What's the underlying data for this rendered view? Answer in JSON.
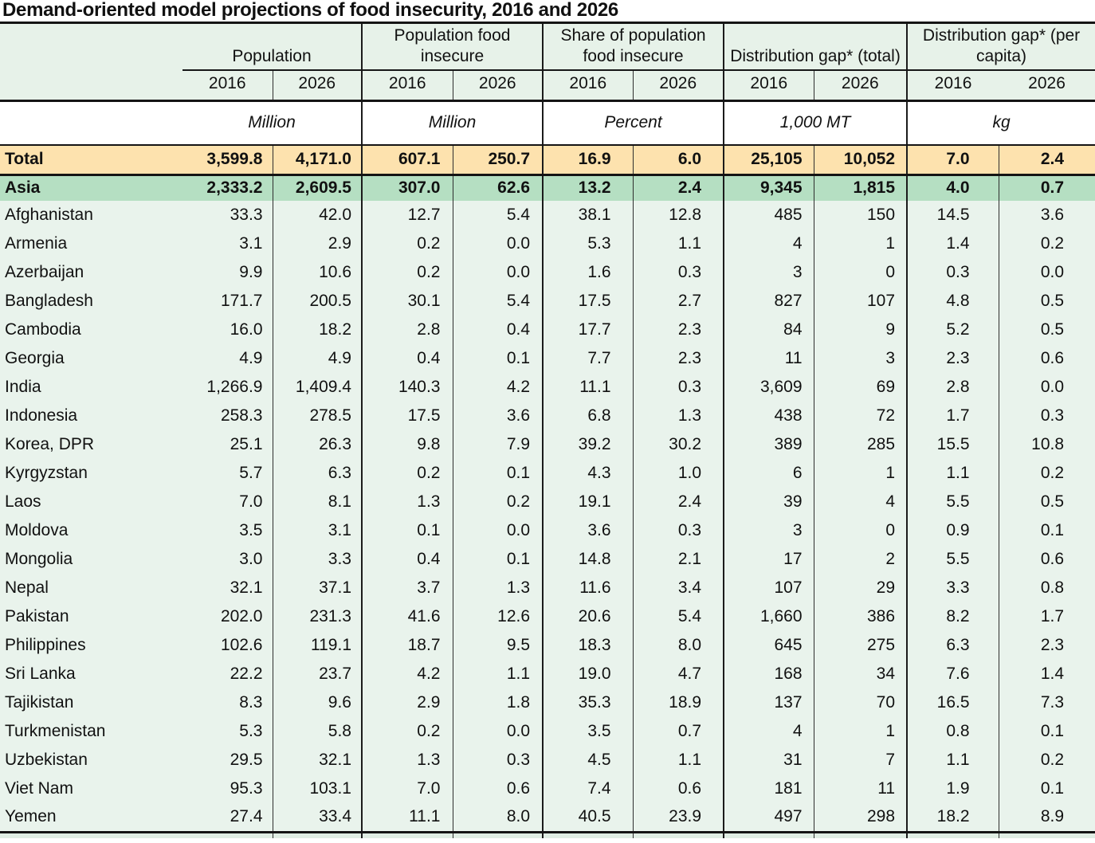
{
  "title": "Demand-oriented model projections of food insecurity, 2016 and 2026",
  "colors": {
    "header_green": "#e7f2e9",
    "country_row_green": "#e9f3ec",
    "asia_row_green": "#b5dfc2",
    "total_row_orange": "#fde2ae",
    "rule_dark": "#141414",
    "rule_thin": "#2e2e2e",
    "partial_bottom_row": "#dfede3"
  },
  "table": {
    "years": [
      "2016",
      "2026"
    ],
    "groups": [
      {
        "label": "Population",
        "unit": "Million"
      },
      {
        "label": "Population food insecure",
        "unit": "Million"
      },
      {
        "label": "Share of population food insecure",
        "unit": "Percent"
      },
      {
        "label": "Distribution gap* (total)",
        "unit": "1,000 MT"
      },
      {
        "label": "Distribution gap* (per capita)",
        "unit": "kg"
      }
    ],
    "rows": [
      {
        "name": "Total",
        "type": "total",
        "values": [
          "3,599.8",
          "4,171.0",
          "607.1",
          "250.7",
          "16.9",
          "6.0",
          "25,105",
          "10,052",
          "7.0",
          "2.4"
        ]
      },
      {
        "name": "Asia",
        "type": "region",
        "values": [
          "2,333.2",
          "2,609.5",
          "307.0",
          "62.6",
          "13.2",
          "2.4",
          "9,345",
          "1,815",
          "4.0",
          "0.7"
        ]
      },
      {
        "name": "Afghanistan",
        "type": "country",
        "values": [
          "33.3",
          "42.0",
          "12.7",
          "5.4",
          "38.1",
          "12.8",
          "485",
          "150",
          "14.5",
          "3.6"
        ]
      },
      {
        "name": "Armenia",
        "type": "country",
        "values": [
          "3.1",
          "2.9",
          "0.2",
          "0.0",
          "5.3",
          "1.1",
          "4",
          "1",
          "1.4",
          "0.2"
        ]
      },
      {
        "name": "Azerbaijan",
        "type": "country",
        "values": [
          "9.9",
          "10.6",
          "0.2",
          "0.0",
          "1.6",
          "0.3",
          "3",
          "0",
          "0.3",
          "0.0"
        ]
      },
      {
        "name": "Bangladesh",
        "type": "country",
        "values": [
          "171.7",
          "200.5",
          "30.1",
          "5.4",
          "17.5",
          "2.7",
          "827",
          "107",
          "4.8",
          "0.5"
        ]
      },
      {
        "name": "Cambodia",
        "type": "country",
        "values": [
          "16.0",
          "18.2",
          "2.8",
          "0.4",
          "17.7",
          "2.3",
          "84",
          "9",
          "5.2",
          "0.5"
        ]
      },
      {
        "name": "Georgia",
        "type": "country",
        "values": [
          "4.9",
          "4.9",
          "0.4",
          "0.1",
          "7.7",
          "2.3",
          "11",
          "3",
          "2.3",
          "0.6"
        ]
      },
      {
        "name": "India",
        "type": "country",
        "values": [
          "1,266.9",
          "1,409.4",
          "140.3",
          "4.2",
          "11.1",
          "0.3",
          "3,609",
          "69",
          "2.8",
          "0.0"
        ]
      },
      {
        "name": "Indonesia",
        "type": "country",
        "values": [
          "258.3",
          "278.5",
          "17.5",
          "3.6",
          "6.8",
          "1.3",
          "438",
          "72",
          "1.7",
          "0.3"
        ]
      },
      {
        "name": "Korea, DPR",
        "type": "country",
        "values": [
          "25.1",
          "26.3",
          "9.8",
          "7.9",
          "39.2",
          "30.2",
          "389",
          "285",
          "15.5",
          "10.8"
        ]
      },
      {
        "name": "Kyrgyzstan",
        "type": "country",
        "values": [
          "5.7",
          "6.3",
          "0.2",
          "0.1",
          "4.3",
          "1.0",
          "6",
          "1",
          "1.1",
          "0.2"
        ]
      },
      {
        "name": "Laos",
        "type": "country",
        "values": [
          "7.0",
          "8.1",
          "1.3",
          "0.2",
          "19.1",
          "2.4",
          "39",
          "4",
          "5.5",
          "0.5"
        ]
      },
      {
        "name": "Moldova",
        "type": "country",
        "values": [
          "3.5",
          "3.1",
          "0.1",
          "0.0",
          "3.6",
          "0.3",
          "3",
          "0",
          "0.9",
          "0.1"
        ]
      },
      {
        "name": "Mongolia",
        "type": "country",
        "values": [
          "3.0",
          "3.3",
          "0.4",
          "0.1",
          "14.8",
          "2.1",
          "17",
          "2",
          "5.5",
          "0.6"
        ]
      },
      {
        "name": "Nepal",
        "type": "country",
        "values": [
          "32.1",
          "37.1",
          "3.7",
          "1.3",
          "11.6",
          "3.4",
          "107",
          "29",
          "3.3",
          "0.8"
        ]
      },
      {
        "name": "Pakistan",
        "type": "country",
        "values": [
          "202.0",
          "231.3",
          "41.6",
          "12.6",
          "20.6",
          "5.4",
          "1,660",
          "386",
          "8.2",
          "1.7"
        ]
      },
      {
        "name": "Philippines",
        "type": "country",
        "values": [
          "102.6",
          "119.1",
          "18.7",
          "9.5",
          "18.3",
          "8.0",
          "645",
          "275",
          "6.3",
          "2.3"
        ]
      },
      {
        "name": "Sri Lanka",
        "type": "country",
        "values": [
          "22.2",
          "23.7",
          "4.2",
          "1.1",
          "19.0",
          "4.7",
          "168",
          "34",
          "7.6",
          "1.4"
        ]
      },
      {
        "name": "Tajikistan",
        "type": "country",
        "values": [
          "8.3",
          "9.6",
          "2.9",
          "1.8",
          "35.3",
          "18.9",
          "137",
          "70",
          "16.5",
          "7.3"
        ]
      },
      {
        "name": "Turkmenistan",
        "type": "country",
        "values": [
          "5.3",
          "5.8",
          "0.2",
          "0.0",
          "3.5",
          "0.7",
          "4",
          "1",
          "0.8",
          "0.1"
        ]
      },
      {
        "name": "Uzbekistan",
        "type": "country",
        "values": [
          "29.5",
          "32.1",
          "1.3",
          "0.3",
          "4.5",
          "1.1",
          "31",
          "7",
          "1.1",
          "0.2"
        ]
      },
      {
        "name": "Viet Nam",
        "type": "country",
        "values": [
          "95.3",
          "103.1",
          "7.0",
          "0.6",
          "7.4",
          "0.6",
          "181",
          "11",
          "1.9",
          "0.1"
        ]
      },
      {
        "name": "Yemen",
        "type": "country",
        "values": [
          "27.4",
          "33.4",
          "11.1",
          "8.0",
          "40.5",
          "23.9",
          "497",
          "298",
          "18.2",
          "8.9"
        ]
      }
    ]
  }
}
